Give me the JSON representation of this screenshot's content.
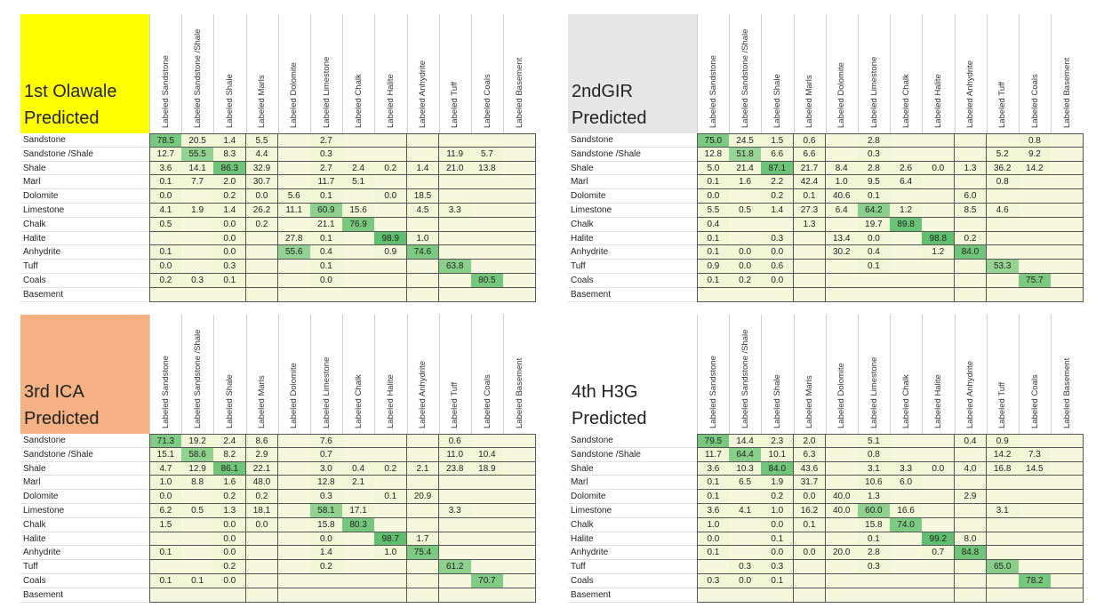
{
  "chart_data": [
    {
      "type": "table",
      "title": "1st Olawale Predicted",
      "title_lines": [
        "1st Olawale",
        "Predicted"
      ],
      "title_color": "#ffff00",
      "columns": [
        "Labeled Sandstone",
        "Labeled Sandstone /Shale",
        "Labeled Shale",
        "Labeled Marls",
        "Labeled Dolomite",
        "Labeled Limestone",
        "Labeled Chalk",
        "Labeled Halite",
        "Labeled Anhydrite",
        "Labeled Tuff",
        "Labeled Coals",
        "Labeled Basement"
      ],
      "rows": [
        "Sandstone",
        "Sandstone /Shale",
        "Shale",
        "Marl",
        "Dolomite",
        "Limestone",
        "Chalk",
        "Halite",
        "Anhydrite",
        "Tuff",
        "Coals",
        "Basement"
      ],
      "values": [
        [
          "78.5",
          "20.5",
          "1.4",
          "5.5",
          "",
          "2.7",
          "",
          "",
          "",
          "",
          "",
          ""
        ],
        [
          "12.7",
          "55.5",
          "8.3",
          "4.4",
          "",
          "0.3",
          "",
          "",
          "",
          "11.9",
          "5.7",
          ""
        ],
        [
          "3.6",
          "14.1",
          "86.3",
          "32.9",
          "",
          "2.7",
          "2.4",
          "0.2",
          "1.4",
          "21.0",
          "13.8",
          ""
        ],
        [
          "0.1",
          "7.7",
          "2.0",
          "30.7",
          "",
          "11.7",
          "5.1",
          "",
          "",
          "",
          "",
          ""
        ],
        [
          "0.0",
          "",
          "0.2",
          "0.0",
          "5.6",
          "0.1",
          "",
          "0.0",
          "18.5",
          "",
          "",
          ""
        ],
        [
          "4.1",
          "1.9",
          "1.4",
          "26.2",
          "11.1",
          "60.9",
          "15.6",
          "",
          "4.5",
          "3.3",
          "",
          ""
        ],
        [
          "0.5",
          "",
          "0.0",
          "0.2",
          "",
          "21.1",
          "76.9",
          "",
          "",
          "",
          "",
          ""
        ],
        [
          "",
          "",
          "0.0",
          "",
          "27.8",
          "0.1",
          "",
          "98.9",
          "1.0",
          "",
          "",
          ""
        ],
        [
          "0.1",
          "",
          "0.0",
          "",
          "55.6",
          "0.4",
          "",
          "0.9",
          "74.6",
          "",
          "",
          ""
        ],
        [
          "0.0",
          "",
          "0.3",
          "",
          "",
          "0.1",
          "",
          "",
          "",
          "63.8",
          "",
          ""
        ],
        [
          "0.2",
          "0.3",
          "0.1",
          "",
          "",
          "0.0",
          "",
          "",
          "",
          "",
          "80.5",
          ""
        ],
        [
          "",
          "",
          "",
          "",
          "",
          "",
          "",
          "",
          "",
          "",
          "",
          ""
        ]
      ]
    },
    {
      "type": "table",
      "title": "2ndGIR Predicted",
      "title_lines": [
        "2ndGIR",
        "Predicted"
      ],
      "title_color": "#e6e6e6",
      "columns": [
        "Labeled Sandstone",
        "Labeled Sandstone /Shale",
        "Labeled Shale",
        "Labeled Marls",
        "Labeled Dolomite",
        "Labeled Limestone",
        "Labeled Chalk",
        "Labeled Halite",
        "Labeled Anhydrite",
        "Labeled Tuff",
        "Labeled Coals",
        "Labeled Basement"
      ],
      "rows": [
        "Sandstone",
        "Sandstone /Shale",
        "Shale",
        "Marl",
        "Dolomite",
        "Limestone",
        "Chalk",
        "Halite",
        "Anhydrite",
        "Tuff",
        "Coals",
        "Basement"
      ],
      "values": [
        [
          "75.0",
          "24.5",
          "1.5",
          "0.6",
          "",
          "2.8",
          "",
          "",
          "",
          "",
          "0.8",
          ""
        ],
        [
          "12.8",
          "51.8",
          "6.6",
          "6.6",
          "",
          "0.3",
          "",
          "",
          "",
          "5.2",
          "9.2",
          ""
        ],
        [
          "5.0",
          "21.4",
          "87.1",
          "21.7",
          "8.4",
          "2.8",
          "2.6",
          "0.0",
          "1.3",
          "36.2",
          "14.2",
          ""
        ],
        [
          "0.1",
          "1.6",
          "2.2",
          "42.4",
          "1.0",
          "9.5",
          "6.4",
          "",
          "",
          "0.8",
          "",
          ""
        ],
        [
          "0.0",
          "",
          "0.2",
          "0.1",
          "40.6",
          "0.1",
          "",
          "",
          "6.0",
          "",
          "",
          ""
        ],
        [
          "5.5",
          "0.5",
          "1.4",
          "27.3",
          "6.4",
          "64.2",
          "1.2",
          "",
          "8.5",
          "4.6",
          "",
          ""
        ],
        [
          "0.4",
          "",
          "",
          "1.3",
          "",
          "19.7",
          "89.8",
          "",
          "",
          "",
          "",
          ""
        ],
        [
          "0.1",
          "",
          "0.3",
          "",
          "13.4",
          "0.0",
          "",
          "98.8",
          "0.2",
          "",
          "",
          ""
        ],
        [
          "0.1",
          "0.0",
          "0.0",
          "",
          "30.2",
          "0.4",
          "",
          "1.2",
          "84.0",
          "",
          "",
          ""
        ],
        [
          "0.9",
          "0.0",
          "0.6",
          "",
          "",
          "0.1",
          "",
          "",
          "",
          "53.3",
          "",
          ""
        ],
        [
          "0.1",
          "0.2",
          "0.0",
          "",
          "",
          "",
          "",
          "",
          "",
          "",
          "75.7",
          ""
        ],
        [
          "",
          "",
          "",
          "",
          "",
          "",
          "",
          "",
          "",
          "",
          "",
          ""
        ]
      ]
    },
    {
      "type": "table",
      "title": "3rd ICA Predicted",
      "title_lines": [
        "3rd ICA",
        "Predicted"
      ],
      "title_color": "#f4b183",
      "columns": [
        "Labeled Sandstone",
        "Labeled Sandstone /Shale",
        "Labeled Shale",
        "Labeled Marls",
        "Labeled Dolomite",
        "Labeled Limestone",
        "Labeled Chalk",
        "Labeled Halite",
        "Labeled Anhydrite",
        "Labeled Tuff",
        "Labeled Coals",
        "Labeled Basement"
      ],
      "rows": [
        "Sandstone",
        "Sandstone /Shale",
        "Shale",
        "Marl",
        "Dolomite",
        "Limestone",
        "Chalk",
        "Halite",
        "Anhydrite",
        "Tuff",
        "Coals",
        "Basement"
      ],
      "values": [
        [
          "71.3",
          "19.2",
          "2.4",
          "8.6",
          "",
          "7.6",
          "",
          "",
          "",
          "0.6",
          "",
          ""
        ],
        [
          "15.1",
          "58.6",
          "8.2",
          "2.9",
          "",
          "0.7",
          "",
          "",
          "",
          "11.0",
          "10.4",
          ""
        ],
        [
          "4.7",
          "12.9",
          "86.1",
          "22.1",
          "",
          "3.0",
          "0.4",
          "0.2",
          "2.1",
          "23.8",
          "18.9",
          ""
        ],
        [
          "1.0",
          "8.8",
          "1.6",
          "48.0",
          "",
          "12.8",
          "2.1",
          "",
          "",
          "",
          "",
          ""
        ],
        [
          "0.0",
          "",
          "0.2",
          "0.2",
          "",
          "0.3",
          "",
          "0.1",
          "20.9",
          "",
          "",
          ""
        ],
        [
          "6.2",
          "0.5",
          "1.3",
          "18.1",
          "",
          "58.1",
          "17.1",
          "",
          "",
          "3.3",
          "",
          ""
        ],
        [
          "1.5",
          "",
          "0.0",
          "0.0",
          "",
          "15.8",
          "80.3",
          "",
          "",
          "",
          "",
          ""
        ],
        [
          "",
          "",
          "0.0",
          "",
          "",
          "0.0",
          "",
          "98.7",
          "1.7",
          "",
          "",
          ""
        ],
        [
          "0.1",
          "",
          "0.0",
          "",
          "",
          "1.4",
          "",
          "1.0",
          "75.4",
          "",
          "",
          ""
        ],
        [
          "",
          "",
          "0.2",
          "",
          "",
          "0.2",
          "",
          "",
          "",
          "61.2",
          "",
          ""
        ],
        [
          "0.1",
          "0.1",
          "0.0",
          "",
          "",
          "",
          "",
          "",
          "",
          "",
          "70.7",
          ""
        ],
        [
          "",
          "",
          "",
          "",
          "",
          "",
          "",
          "",
          "",
          "",
          "",
          ""
        ]
      ]
    },
    {
      "type": "table",
      "title": "4th H3G Predicted",
      "title_lines": [
        "4th H3G",
        "Predicted"
      ],
      "title_color": "#ffffff",
      "columns": [
        "Labeled Sandstone",
        "Labeled Sandstone /Shale",
        "Labeled Shale",
        "Labeled Marls",
        "Labeled Dolomite",
        "Labeled Limestone",
        "Labeled Chalk",
        "Labeled Halite",
        "Labeled Anhydrite",
        "Labeled Tuff",
        "Labeled Coals",
        "Labeled Basement"
      ],
      "rows": [
        "Sandstone",
        "Sandstone /Shale",
        "Shale",
        "Marl",
        "Dolomite",
        "Limestone",
        "Chalk",
        "Halite",
        "Anhydrite",
        "Tuff",
        "Coals",
        "Basement"
      ],
      "values": [
        [
          "79.5",
          "14.4",
          "2.3",
          "2.0",
          "",
          "5.1",
          "",
          "",
          "0.4",
          "0.9",
          "",
          ""
        ],
        [
          "11.7",
          "64.4",
          "10.1",
          "6.3",
          "",
          "0.8",
          "",
          "",
          "",
          "14.2",
          "7.3",
          ""
        ],
        [
          "3.6",
          "10.3",
          "84.0",
          "43.6",
          "",
          "3.1",
          "3.3",
          "0.0",
          "4.0",
          "16.8",
          "14.5",
          ""
        ],
        [
          "0.1",
          "6.5",
          "1.9",
          "31.7",
          "",
          "10.6",
          "6.0",
          "",
          "",
          "",
          "",
          ""
        ],
        [
          "0.1",
          "",
          "0.2",
          "0.0",
          "40.0",
          "1.3",
          "",
          "",
          "2.9",
          "",
          "",
          ""
        ],
        [
          "3.6",
          "4.1",
          "1.0",
          "16.2",
          "40.0",
          "60.0",
          "16.6",
          "",
          "",
          "3.1",
          "",
          ""
        ],
        [
          "1.0",
          "",
          "0.0",
          "0.1",
          "",
          "15.8",
          "74.0",
          "",
          "",
          "",
          "",
          ""
        ],
        [
          "0.0",
          "",
          "0.1",
          "",
          "",
          "0.1",
          "",
          "99.2",
          "8.0",
          "",
          "",
          ""
        ],
        [
          "0.1",
          "",
          "0.0",
          "0.0",
          "20.0",
          "2.8",
          "",
          "0.7",
          "84.8",
          "",
          "",
          ""
        ],
        [
          "",
          "0.3",
          "0.3",
          "",
          "",
          "0.3",
          "",
          "",
          "",
          "65.0",
          "",
          ""
        ],
        [
          "0.3",
          "0.0",
          "0.1",
          "",
          "",
          "",
          "",
          "",
          "",
          "",
          "78.2",
          ""
        ],
        [
          "",
          "",
          "",
          "",
          "",
          "",
          "",
          "",
          "",
          "",
          "",
          ""
        ]
      ]
    }
  ]
}
